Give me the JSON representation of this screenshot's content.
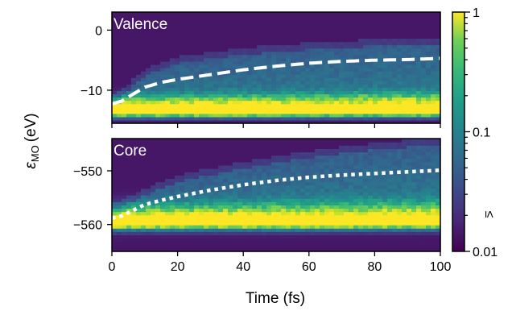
{
  "chart_data": {
    "type": "heatmap",
    "colormap": "viridis",
    "colorbar": {
      "scale": "log",
      "min": 0.01,
      "max": 1,
      "tick_labels": [
        "1",
        "0.1",
        "0.01"
      ],
      "extra_label": "≤"
    },
    "xlabel": "Time (fs)",
    "ylabel_main": "ε",
    "ylabel_sub": "MO",
    "ylabel_unit": "(eV)",
    "xlim": [
      0,
      100
    ],
    "x_ticks": [
      0,
      20,
      40,
      60,
      80,
      100
    ],
    "panels": [
      {
        "label": "Valence",
        "ylim": [
          -15.5,
          3
        ],
        "y_ticks": [
          0,
          -10
        ],
        "y_tick_labels": [
          "0",
          "−10"
        ],
        "line_style": "dashed",
        "line_color": "#ffffff",
        "line": {
          "x": [
            0,
            3,
            6,
            10,
            15,
            20,
            30,
            40,
            50,
            60,
            70,
            80,
            90,
            100
          ],
          "y": [
            -12.3,
            -11.8,
            -10.8,
            -9.5,
            -8.7,
            -8.2,
            -7.4,
            -6.6,
            -6.0,
            -5.5,
            -5.2,
            -5.0,
            -4.9,
            -4.7
          ]
        },
        "bands": [
          {
            "center": [
              -13.5,
              -13.5
            ],
            "width": 0.9,
            "intensity": 0.95
          },
          {
            "center": [
              -12.5,
              -12.0
            ],
            "width": 1.6,
            "intensity": 0.55
          }
        ],
        "spread_top": {
          "x": [
            0,
            5,
            10,
            20,
            40,
            60,
            80,
            100
          ],
          "y": [
            -12.0,
            -10.0,
            -7.5,
            -5.5,
            -4.0,
            -3.2,
            -2.6,
            -2.2
          ]
        }
      },
      {
        "label": "Core",
        "ylim": [
          -565,
          -544
        ],
        "y_ticks": [
          -550,
          -560
        ],
        "y_tick_labels": [
          "−550",
          "−560"
        ],
        "line_style": "dotted",
        "line_color": "#ffffff",
        "line": {
          "x": [
            0,
            3,
            6,
            10,
            15,
            20,
            30,
            40,
            50,
            60,
            70,
            80,
            90,
            100
          ],
          "y": [
            -558.8,
            -558.4,
            -557.5,
            -556.3,
            -555.5,
            -554.8,
            -553.6,
            -552.6,
            -551.8,
            -551.2,
            -550.8,
            -550.5,
            -550.2,
            -549.9
          ]
        },
        "bands": [
          {
            "center": [
              -559.5,
              -559.5
            ],
            "width": 1.2,
            "intensity": 0.95
          },
          {
            "center": [
              -558.5,
              -558.0
            ],
            "width": 2.4,
            "intensity": 0.5
          }
        ],
        "spread_top": {
          "x": [
            0,
            5,
            10,
            20,
            40,
            60,
            80,
            100
          ],
          "y": [
            -557.5,
            -556.0,
            -554.5,
            -552.0,
            -549.5,
            -547.5,
            -546.0,
            -545.0
          ]
        }
      }
    ]
  }
}
